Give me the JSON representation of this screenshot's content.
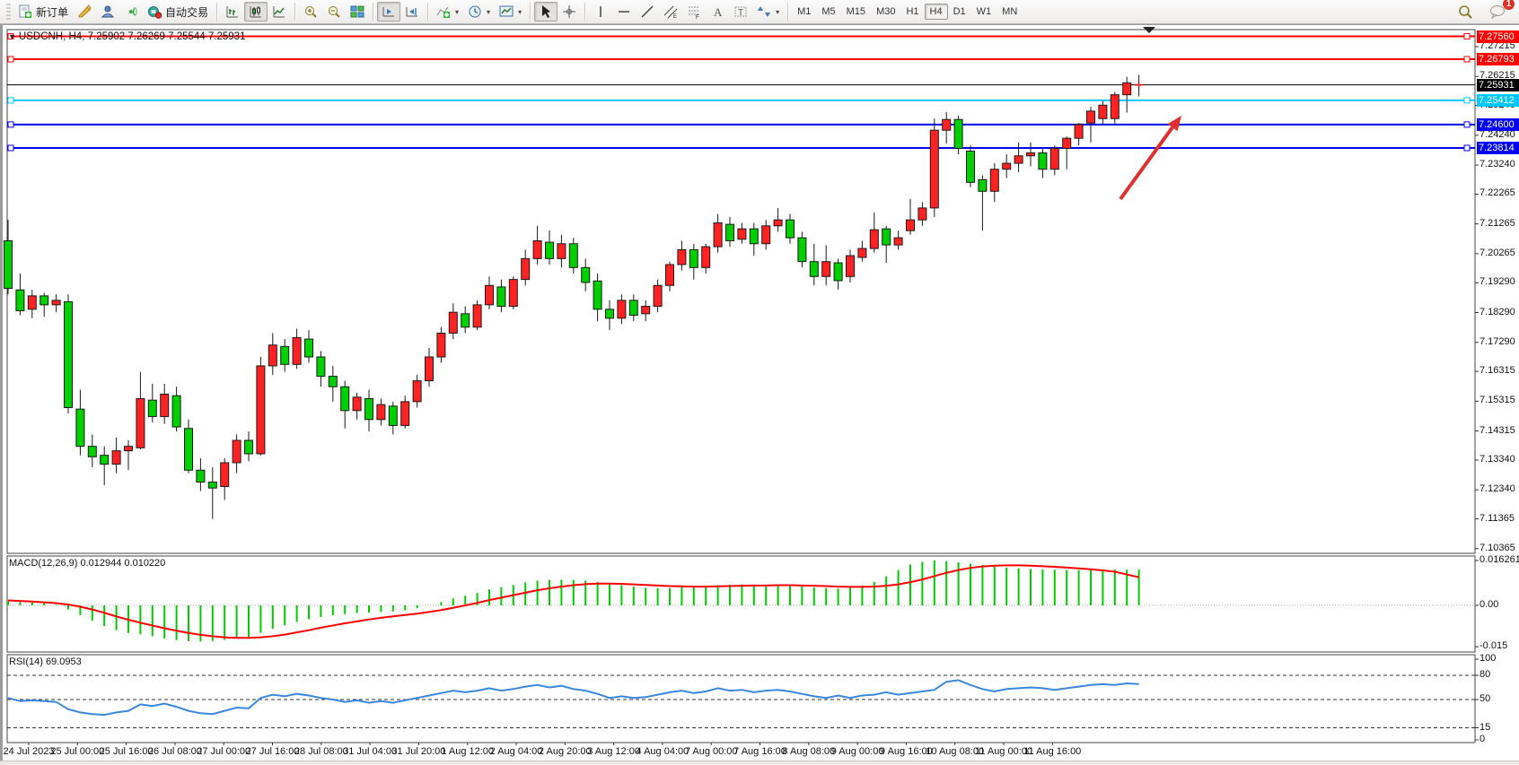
{
  "toolbar": {
    "new_order_label": "新订单",
    "auto_trading_label": "自动交易",
    "timeframes": [
      "M1",
      "M5",
      "M15",
      "M30",
      "H1",
      "H4",
      "D1",
      "W1",
      "MN"
    ],
    "active_timeframe": "H4",
    "notification_count": "1"
  },
  "indicators": {
    "macd_label": "MACD(12,26,9) 0.012944 0.010220",
    "rsi_label": "RSI(14) 69.0953"
  },
  "chart_data": {
    "type": "candlestick",
    "symbol": "USDCNH",
    "timeframe": "H4",
    "title": "USDCNH, H4, 7.25902 7.26269 7.25544 7.25931",
    "ohlc_current": {
      "open": "7.25902",
      "high": "7.26269",
      "low": "7.25544",
      "close": "7.25931"
    },
    "colors": {
      "bull": "#ff2222",
      "bear": "#00d000",
      "wick": "#1a1a1a",
      "macd_hist": "#00cc00",
      "macd_signal": "#ff0000",
      "rsi_line": "#3a87e0",
      "level_red": "#ff0000",
      "level_cyan": "#00c8ff",
      "level_blue": "#0000ee",
      "current_price_color": "#000000",
      "arrow": "#e02f2f"
    },
    "levels": [
      {
        "label": "7.27560",
        "price": 7.2756,
        "color": "#ff0000"
      },
      {
        "label": "7.26793",
        "price": 7.26793,
        "color": "#ff0000"
      },
      {
        "label": "7.25412",
        "price": 7.25412,
        "color": "#00c8ff"
      },
      {
        "label": "7.24600",
        "price": 7.246,
        "color": "#0000ee"
      },
      {
        "label": "7.23814",
        "price": 7.23814,
        "color": "#0000ee"
      }
    ],
    "current_price": {
      "label": "7.25931",
      "price": 7.25931
    },
    "price_axis_ticks": [
      {
        "label": "7.27215",
        "price": 7.27215
      },
      {
        "label": "7.26215",
        "price": 7.26215
      },
      {
        "label": "7.25240",
        "price": 7.2524
      },
      {
        "label": "7.24240",
        "price": 7.2424
      },
      {
        "label": "7.23240",
        "price": 7.2324
      },
      {
        "label": "7.22265",
        "price": 7.22265
      },
      {
        "label": "7.21265",
        "price": 7.21265
      },
      {
        "label": "7.20265",
        "price": 7.20265
      },
      {
        "label": "7.19290",
        "price": 7.1929
      },
      {
        "label": "7.18290",
        "price": 7.1829
      },
      {
        "label": "7.17290",
        "price": 7.1729
      },
      {
        "label": "7.16315",
        "price": 7.16315
      },
      {
        "label": "7.15315",
        "price": 7.15315
      },
      {
        "label": "7.14315",
        "price": 7.14315
      },
      {
        "label": "7.13340",
        "price": 7.1334
      },
      {
        "label": "7.12340",
        "price": 7.1234
      },
      {
        "label": "7.11365",
        "price": 7.11365
      },
      {
        "label": "7.10365",
        "price": 7.10365
      }
    ],
    "time_axis_labels": [
      "24 Jul 2023",
      "25 Jul 00:00",
      "25 Jul 16:00",
      "26 Jul 08:00",
      "27 Jul 00:00",
      "27 Jul 16:00",
      "28 Jul 08:00",
      "31 Jul 04:00",
      "31 Jul 20:00",
      "1 Aug 12:00",
      "2 Aug 04:00",
      "2 Aug 20:00",
      "3 Aug 12:00",
      "4 Aug 04:00",
      "7 Aug 00:00",
      "7 Aug 16:00",
      "8 Aug 08:00",
      "9 Aug 00:00",
      "9 Aug 16:00",
      "10 Aug 08:00",
      "11 Aug 00:00",
      "11 Aug 16:00"
    ],
    "candles": [
      [
        7.207,
        7.214,
        7.189,
        7.191
      ],
      [
        7.1905,
        7.196,
        7.182,
        7.1835
      ],
      [
        7.184,
        7.1905,
        7.181,
        7.1885
      ],
      [
        7.1885,
        7.1895,
        7.1815,
        7.1855
      ],
      [
        7.1855,
        7.189,
        7.183,
        7.187
      ],
      [
        7.1865,
        7.189,
        7.149,
        7.151
      ],
      [
        7.1505,
        7.157,
        7.135,
        7.138
      ],
      [
        7.138,
        7.142,
        7.131,
        7.1345
      ],
      [
        7.135,
        7.138,
        7.125,
        7.132
      ],
      [
        7.132,
        7.141,
        7.129,
        7.1365
      ],
      [
        7.1365,
        7.14,
        7.13,
        7.138
      ],
      [
        7.1375,
        7.163,
        7.137,
        7.154
      ],
      [
        7.1535,
        7.159,
        7.146,
        7.148
      ],
      [
        7.148,
        7.159,
        7.1455,
        7.1555
      ],
      [
        7.155,
        7.158,
        7.143,
        7.1445
      ],
      [
        7.144,
        7.147,
        7.129,
        7.13
      ],
      [
        7.13,
        7.134,
        7.123,
        7.126
      ],
      [
        7.126,
        7.131,
        7.1136,
        7.124
      ],
      [
        7.1245,
        7.134,
        7.12,
        7.1325
      ],
      [
        7.1325,
        7.142,
        7.129,
        7.14
      ],
      [
        7.14,
        7.143,
        7.133,
        7.1355
      ],
      [
        7.1355,
        7.168,
        7.135,
        7.165
      ],
      [
        7.165,
        7.176,
        7.162,
        7.172
      ],
      [
        7.1715,
        7.174,
        7.163,
        7.1655
      ],
      [
        7.1655,
        7.1775,
        7.164,
        7.1745
      ],
      [
        7.174,
        7.177,
        7.166,
        7.168
      ],
      [
        7.168,
        7.17,
        7.158,
        7.1615
      ],
      [
        7.1615,
        7.165,
        7.153,
        7.158
      ],
      [
        7.158,
        7.16,
        7.144,
        7.15
      ],
      [
        7.15,
        7.156,
        7.147,
        7.1545
      ],
      [
        7.154,
        7.157,
        7.143,
        7.147
      ],
      [
        7.147,
        7.154,
        7.145,
        7.152
      ],
      [
        7.1515,
        7.153,
        7.142,
        7.145
      ],
      [
        7.145,
        7.155,
        7.144,
        7.153
      ],
      [
        7.153,
        7.162,
        7.151,
        7.16
      ],
      [
        7.16,
        7.171,
        7.158,
        7.168
      ],
      [
        7.168,
        7.178,
        7.166,
        7.176
      ],
      [
        7.176,
        7.186,
        7.174,
        7.183
      ],
      [
        7.1825,
        7.185,
        7.176,
        7.178
      ],
      [
        7.178,
        7.187,
        7.177,
        7.1855
      ],
      [
        7.1855,
        7.195,
        7.184,
        7.192
      ],
      [
        7.1915,
        7.194,
        7.183,
        7.185
      ],
      [
        7.185,
        7.195,
        7.184,
        7.194
      ],
      [
        7.194,
        7.204,
        7.192,
        7.201
      ],
      [
        7.201,
        7.212,
        7.199,
        7.207
      ],
      [
        7.2065,
        7.2105,
        7.199,
        7.201
      ],
      [
        7.201,
        7.209,
        7.198,
        7.206
      ],
      [
        7.206,
        7.208,
        7.196,
        7.198
      ],
      [
        7.198,
        7.201,
        7.19,
        7.193
      ],
      [
        7.1935,
        7.196,
        7.18,
        7.184
      ],
      [
        7.184,
        7.187,
        7.177,
        7.181
      ],
      [
        7.181,
        7.189,
        7.179,
        7.187
      ],
      [
        7.187,
        7.189,
        7.18,
        7.182
      ],
      [
        7.1825,
        7.187,
        7.18,
        7.185
      ],
      [
        7.185,
        7.194,
        7.183,
        7.192
      ],
      [
        7.192,
        7.2,
        7.19,
        7.199
      ],
      [
        7.199,
        7.207,
        7.197,
        7.204
      ],
      [
        7.204,
        7.206,
        7.194,
        7.198
      ],
      [
        7.198,
        7.206,
        7.196,
        7.205
      ],
      [
        7.205,
        7.216,
        7.203,
        7.213
      ],
      [
        7.2125,
        7.215,
        7.205,
        7.207
      ],
      [
        7.2075,
        7.213,
        7.206,
        7.211
      ],
      [
        7.211,
        7.213,
        7.202,
        7.206
      ],
      [
        7.206,
        7.214,
        7.204,
        7.212
      ],
      [
        7.212,
        7.218,
        7.21,
        7.214
      ],
      [
        7.214,
        7.216,
        7.206,
        7.208
      ],
      [
        7.208,
        7.21,
        7.198,
        7.2
      ],
      [
        7.2,
        7.206,
        7.192,
        7.195
      ],
      [
        7.195,
        7.2055,
        7.192,
        7.2
      ],
      [
        7.1996,
        7.201,
        7.1906,
        7.1936
      ],
      [
        7.195,
        7.204,
        7.193,
        7.202
      ],
      [
        7.2014,
        7.207,
        7.2,
        7.2044
      ],
      [
        7.2044,
        7.2165,
        7.203,
        7.2107
      ],
      [
        7.211,
        7.212,
        7.1996,
        7.2056
      ],
      [
        7.2056,
        7.2104,
        7.204,
        7.208
      ],
      [
        7.2104,
        7.221,
        7.209,
        7.214
      ],
      [
        7.214,
        7.22,
        7.212,
        7.218
      ],
      [
        7.218,
        7.248,
        7.215,
        7.2441
      ],
      [
        7.2441,
        7.2502,
        7.2396,
        7.2477
      ],
      [
        7.2477,
        7.249,
        7.236,
        7.238
      ],
      [
        7.2371,
        7.239,
        7.225,
        7.2266
      ],
      [
        7.2275,
        7.229,
        7.2104,
        7.2236
      ],
      [
        7.2236,
        7.233,
        7.22,
        7.231
      ],
      [
        7.231,
        7.236,
        7.228,
        7.233
      ],
      [
        7.233,
        7.24,
        7.23,
        7.2355
      ],
      [
        7.2355,
        7.24,
        7.232,
        7.2365
      ],
      [
        7.2365,
        7.238,
        7.228,
        7.231
      ],
      [
        7.231,
        7.239,
        7.229,
        7.238
      ],
      [
        7.238,
        7.242,
        7.231,
        7.2414
      ],
      [
        7.2414,
        7.2465,
        7.239,
        7.246
      ],
      [
        7.2465,
        7.252,
        7.24,
        7.2505
      ],
      [
        7.248,
        7.254,
        7.246,
        7.2525
      ],
      [
        7.248,
        7.257,
        7.246,
        7.256
      ],
      [
        7.256,
        7.262,
        7.25,
        7.26
      ],
      [
        7.25902,
        7.26269,
        7.25544,
        7.25931
      ]
    ],
    "macd": {
      "label": "MACD(12,26,9) 0.012944 0.010220",
      "main_value": "0.012944",
      "signal_value": "0.010220",
      "axis_ticks": [
        {
          "label": "0.016261",
          "value": 0.016261
        },
        {
          "label": "0.00",
          "value": 0.0
        },
        {
          "label": "-0.015",
          "value": -0.015
        }
      ],
      "histogram": [
        0.0015,
        0.0012,
        0.001,
        0.0008,
        0.0002,
        -0.0015,
        -0.0035,
        -0.0055,
        -0.0075,
        -0.009,
        -0.01,
        -0.0105,
        -0.0112,
        -0.012,
        -0.0126,
        -0.013,
        -0.0131,
        -0.0129,
        -0.0125,
        -0.012,
        -0.0114,
        -0.01,
        -0.0085,
        -0.0072,
        -0.006,
        -0.005,
        -0.0042,
        -0.0036,
        -0.0032,
        -0.0028,
        -0.0026,
        -0.0024,
        -0.0022,
        -0.0018,
        -0.001,
        0.0,
        0.0012,
        0.0025,
        0.0035,
        0.0045,
        0.0058,
        0.0066,
        0.0074,
        0.0083,
        0.009,
        0.0092,
        0.0093,
        0.0092,
        0.009,
        0.0085,
        0.0078,
        0.0073,
        0.0068,
        0.0064,
        0.0062,
        0.0063,
        0.0066,
        0.0067,
        0.0069,
        0.0073,
        0.0075,
        0.0076,
        0.0075,
        0.0074,
        0.0074,
        0.0072,
        0.0069,
        0.0065,
        0.0063,
        0.0061,
        0.0068,
        0.0072,
        0.0085,
        0.0105,
        0.0128,
        0.0148,
        0.0158,
        0.01626,
        0.016,
        0.0156,
        0.0151,
        0.0146,
        0.0141,
        0.0137,
        0.0134,
        0.0132,
        0.013,
        0.0129,
        0.0128,
        0.0128,
        0.0129,
        0.013,
        0.013,
        0.01295,
        0.012944
      ],
      "signal": [
        0.0018,
        0.0016,
        0.0014,
        0.0011,
        0.0008,
        0.0003,
        -0.0005,
        -0.0015,
        -0.0027,
        -0.004,
        -0.0052,
        -0.0063,
        -0.0073,
        -0.0083,
        -0.0092,
        -0.01,
        -0.0107,
        -0.0112,
        -0.0116,
        -0.0118,
        -0.0118,
        -0.0116,
        -0.0112,
        -0.0106,
        -0.0098,
        -0.009,
        -0.0081,
        -0.0073,
        -0.0065,
        -0.0058,
        -0.0051,
        -0.0045,
        -0.004,
        -0.0035,
        -0.003,
        -0.0024,
        -0.0017,
        -0.0009,
        0.0,
        0.0009,
        0.0019,
        0.0028,
        0.0037,
        0.0046,
        0.0055,
        0.0062,
        0.0068,
        0.0073,
        0.0077,
        0.0079,
        0.0079,
        0.0078,
        0.0076,
        0.0074,
        0.0072,
        0.007,
        0.0069,
        0.0068,
        0.0068,
        0.0069,
        0.007,
        0.0071,
        0.0072,
        0.0072,
        0.0073,
        0.0073,
        0.0072,
        0.0071,
        0.007,
        0.0068,
        0.0067,
        0.0067,
        0.0068,
        0.0071,
        0.0076,
        0.0084,
        0.0094,
        0.0106,
        0.0118,
        0.0128,
        0.0136,
        0.0141,
        0.0144,
        0.0145,
        0.0145,
        0.0144,
        0.0142,
        0.014,
        0.0137,
        0.0134,
        0.0131,
        0.0127,
        0.0122,
        0.0112,
        0.0102
      ]
    },
    "rsi": {
      "label": "RSI(14) 69.0953",
      "current_value": "69.0953",
      "level_lines": [
        80,
        50,
        15
      ],
      "axis_ticks": [
        {
          "label": "100",
          "value": 100
        },
        {
          "label": "80",
          "value": 80
        },
        {
          "label": "50",
          "value": 50
        },
        {
          "label": "15",
          "value": 15
        },
        {
          "label": "0",
          "value": 0
        }
      ],
      "values": [
        52,
        48,
        49,
        48,
        47,
        38,
        34,
        32,
        31,
        34,
        36,
        44,
        42,
        45,
        41,
        36,
        33,
        32,
        36,
        40,
        39,
        52,
        56,
        54,
        57,
        55,
        52,
        50,
        47,
        49,
        46,
        48,
        46,
        49,
        52,
        55,
        58,
        61,
        59,
        61,
        64,
        61,
        63,
        66,
        68,
        65,
        67,
        63,
        61,
        57,
        52,
        54,
        52,
        53,
        56,
        59,
        61,
        58,
        60,
        64,
        61,
        62,
        59,
        61,
        62,
        60,
        57,
        54,
        52,
        55,
        52,
        55,
        56,
        59,
        56,
        58,
        60,
        62,
        72,
        74,
        68,
        63,
        60,
        63,
        64,
        65,
        64,
        62,
        64,
        66,
        68,
        69,
        68,
        70,
        69.1
      ]
    },
    "annotation_arrow": {
      "color": "#e02f2f"
    }
  }
}
